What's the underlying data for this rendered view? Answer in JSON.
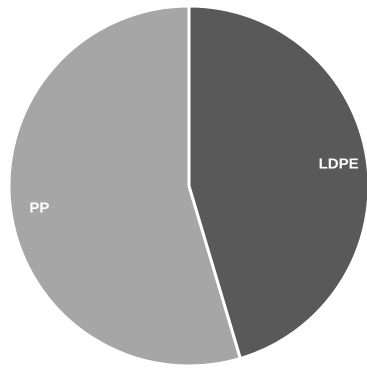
{
  "chart_data": {
    "type": "pie",
    "slices": [
      {
        "label": "LDPE",
        "value": 45.4,
        "color": "#595959"
      },
      {
        "label": "PP",
        "value": 54.6,
        "color": "#a6a6a6"
      }
    ],
    "start_angle_deg": 0,
    "direction": "clockwise",
    "separator_color": "#ffffff",
    "title": "",
    "legend": "none"
  }
}
